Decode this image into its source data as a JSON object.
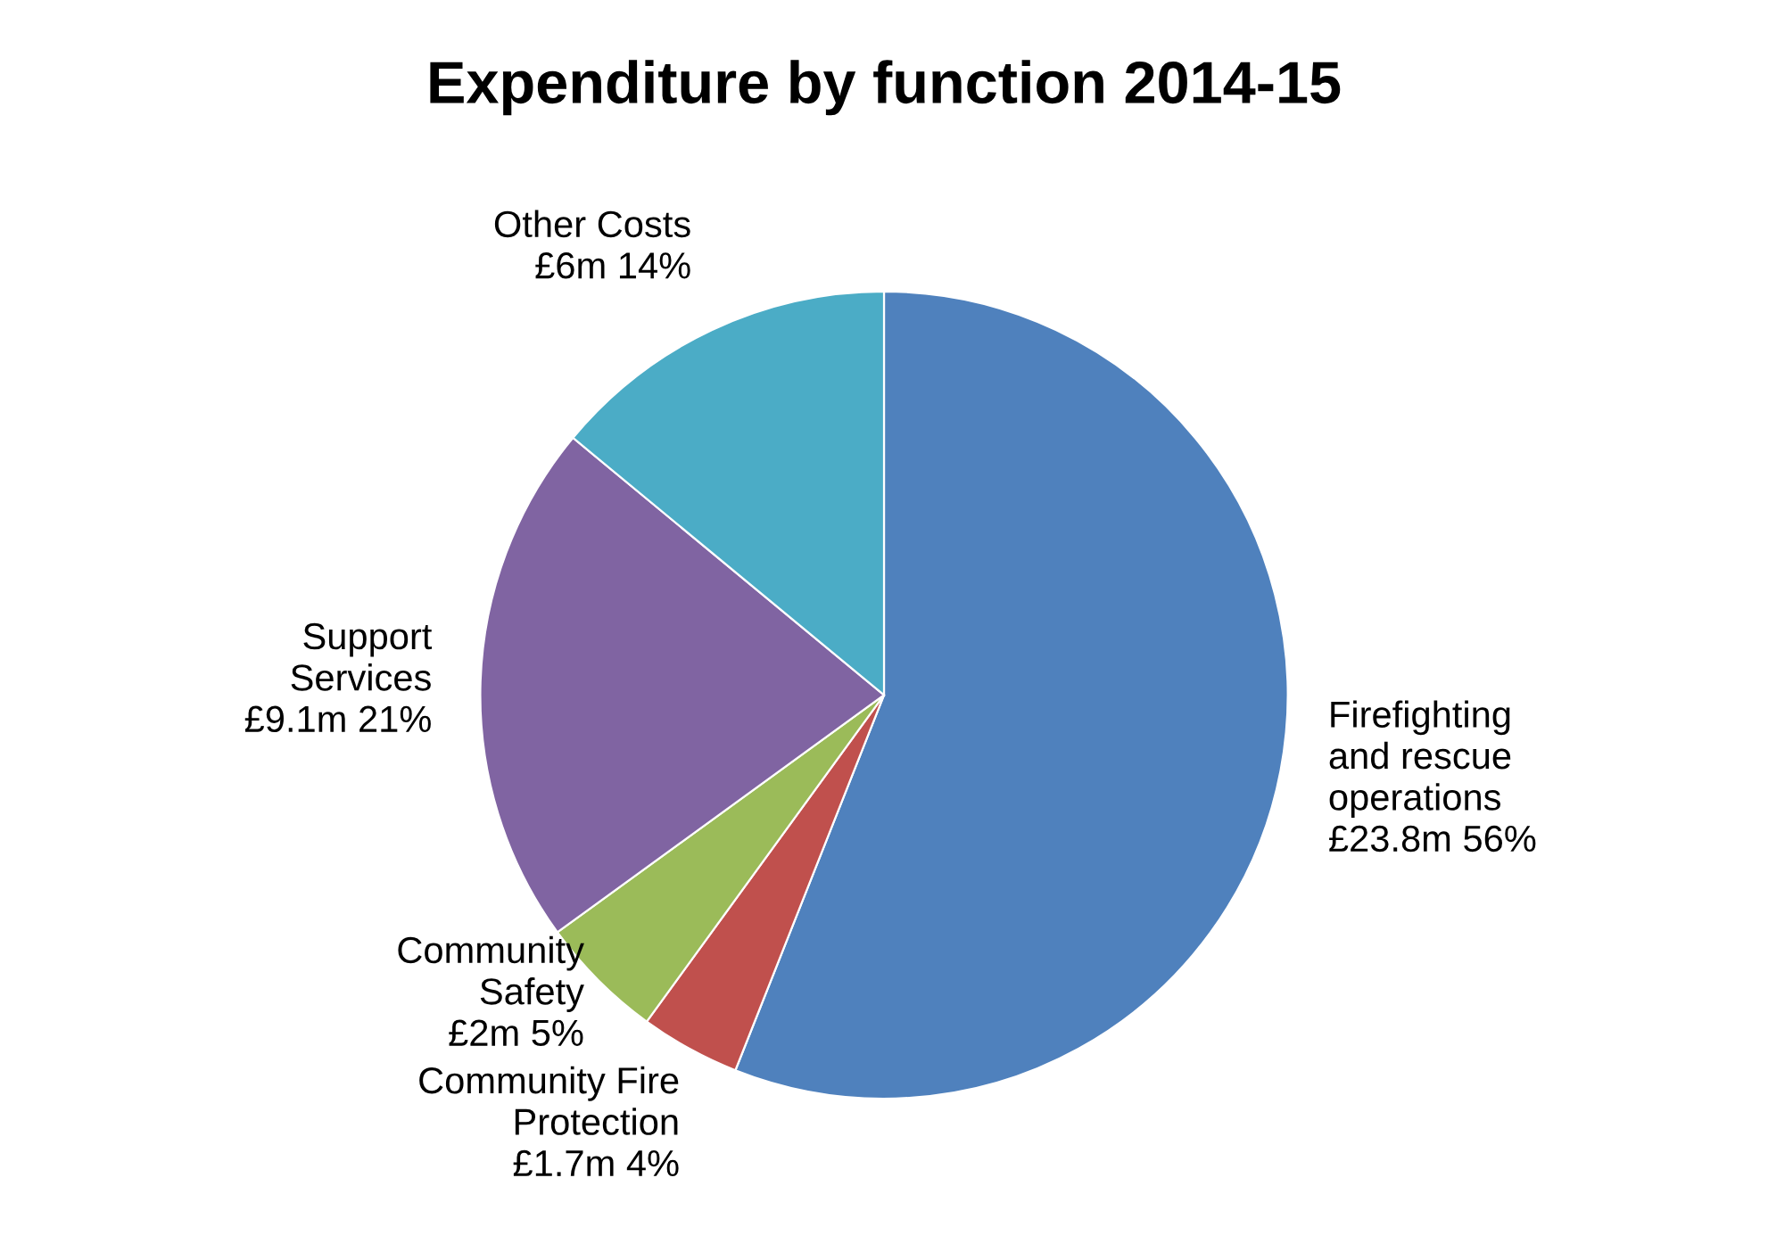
{
  "chart_data": {
    "type": "pie",
    "title": "Expenditure by function 2014-15",
    "categories": [
      "Firefighting\nand rescue\noperations",
      "Community Fire\nProtection",
      "Community\nSafety",
      "Support\nServices",
      "Other Costs"
    ],
    "values": [
      56,
      4,
      5,
      21,
      14
    ],
    "value_labels": [
      "£23.8m 56%",
      "£1.7m 4%",
      "£2m 5%",
      "£9.1m 21%",
      "£6m 14%"
    ],
    "colors": [
      "#4f81bd",
      "#c0504d",
      "#9bbb59",
      "#8064a2",
      "#4bacc6"
    ],
    "legend": false
  }
}
